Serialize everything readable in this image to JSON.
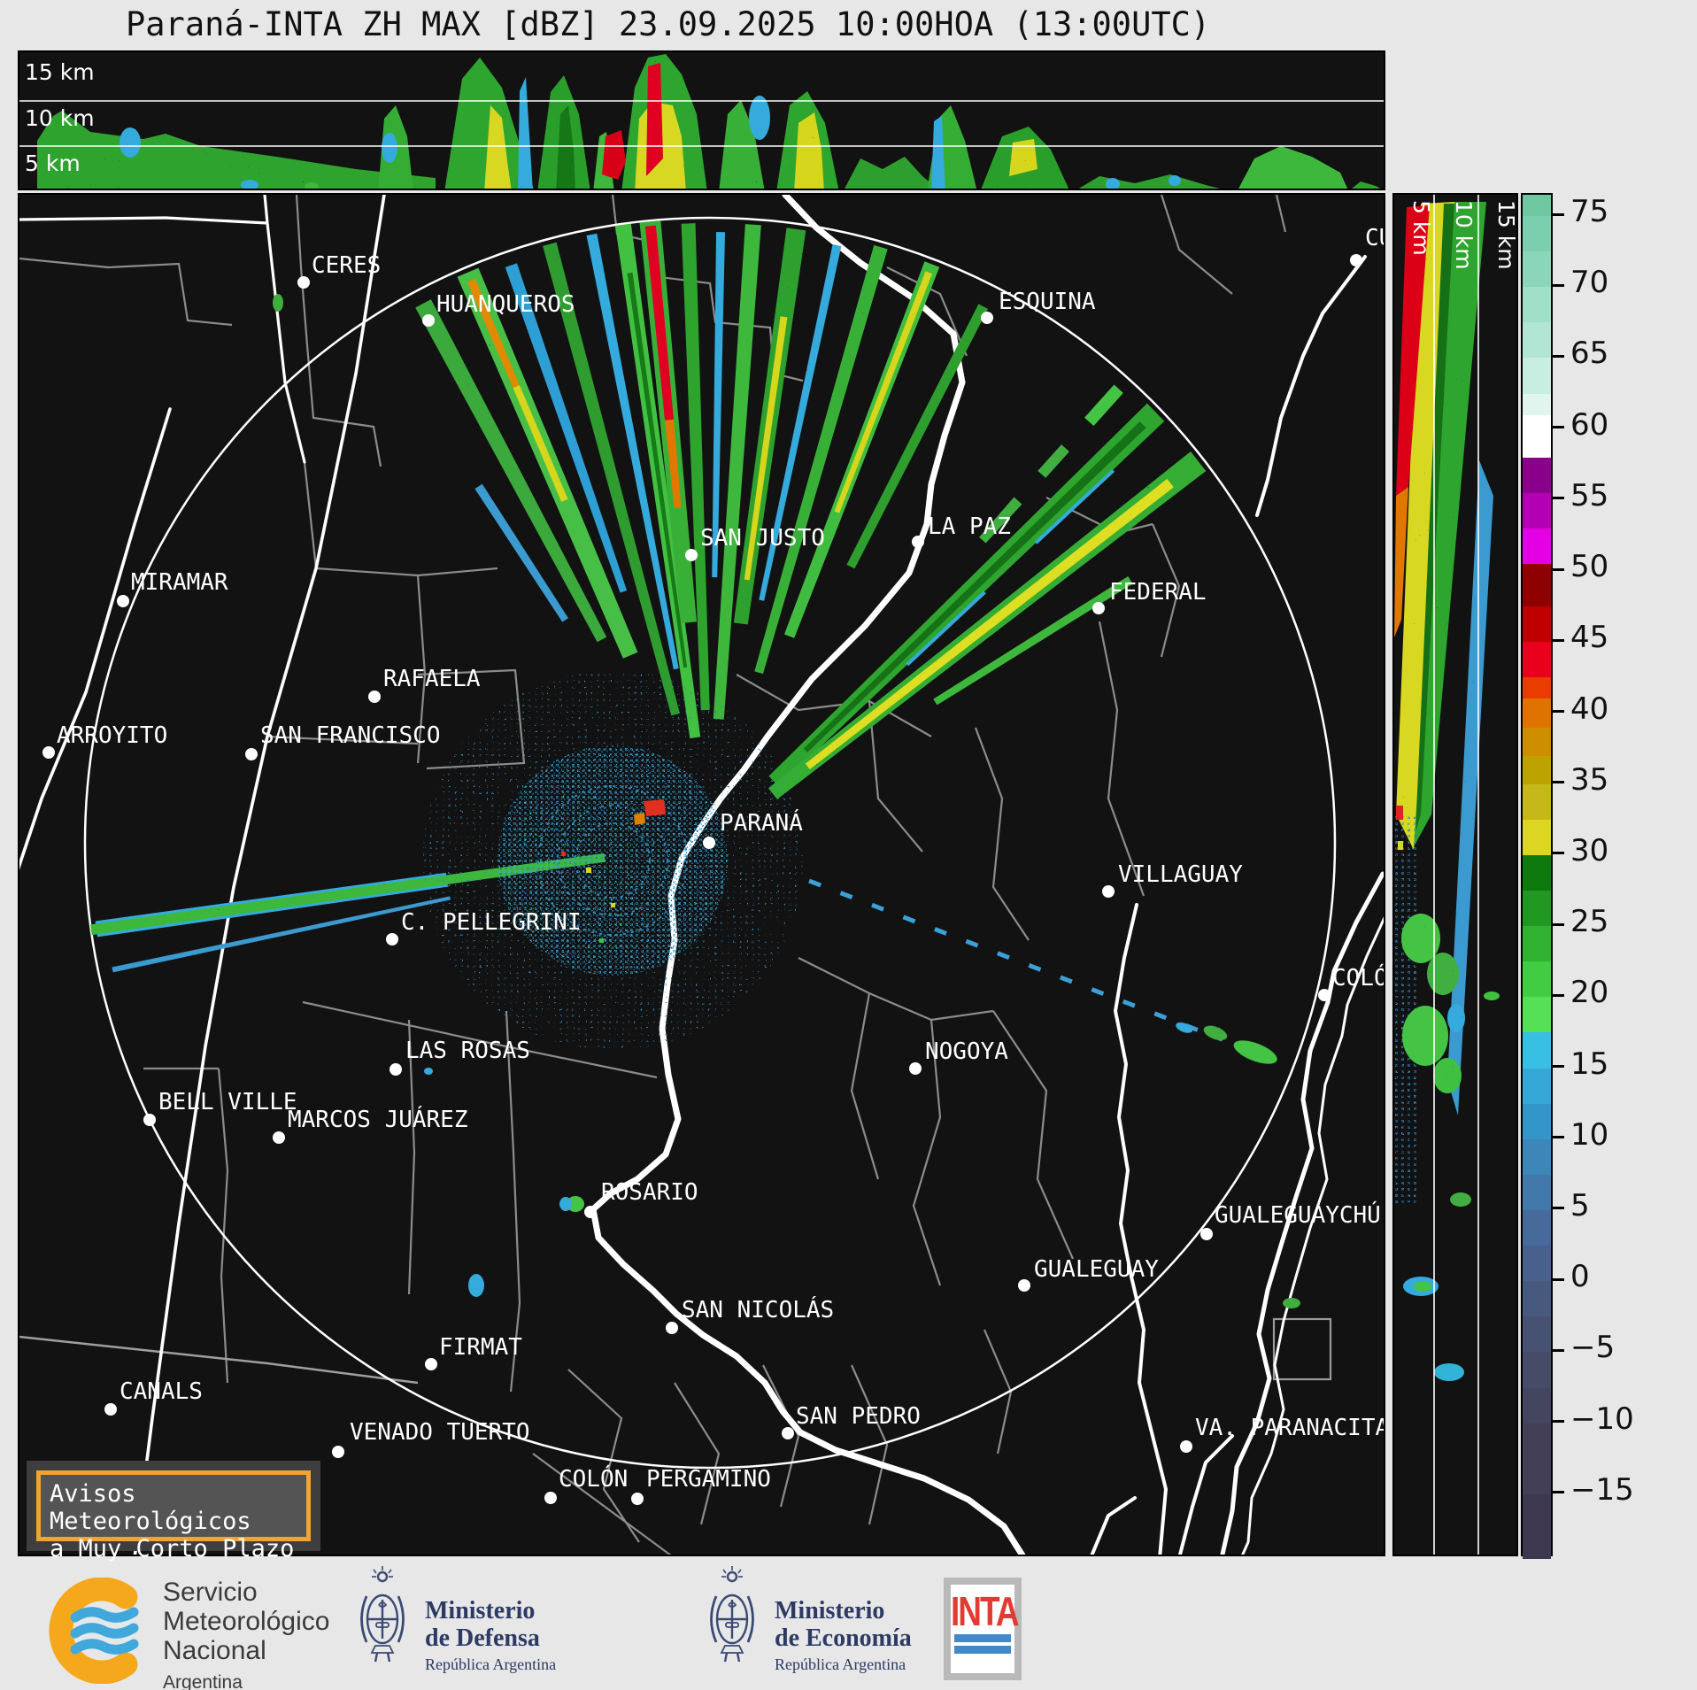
{
  "title": "Paraná-INTA ZH MAX [dBZ] 23.09.2025 10:00HOA (13:00UTC)",
  "top_profile": {
    "height_labels": [
      "15 km",
      "10 km",
      "5 km"
    ]
  },
  "side_profile": {
    "height_labels": [
      "5 km",
      "10 km",
      "15 km"
    ]
  },
  "colorbar": {
    "ticks": [
      75,
      70,
      65,
      60,
      55,
      50,
      45,
      40,
      35,
      30,
      25,
      20,
      15,
      10,
      5,
      0,
      -5,
      -10,
      -15
    ],
    "units": "dBZ",
    "top_value": 76.5,
    "bottom_value": -19.5,
    "segments": [
      {
        "from": 76.5,
        "to": 75,
        "color": "#6ec7a0"
      },
      {
        "from": 75,
        "to": 72.5,
        "color": "#7ccfae"
      },
      {
        "from": 72.5,
        "to": 70,
        "color": "#8bd6ba"
      },
      {
        "from": 70,
        "to": 67.5,
        "color": "#a0dfc8"
      },
      {
        "from": 67.5,
        "to": 65,
        "color": "#b1e6d4"
      },
      {
        "from": 65,
        "to": 62.5,
        "color": "#c8eee2"
      },
      {
        "from": 62.5,
        "to": 61,
        "color": "#dff5ed"
      },
      {
        "from": 61,
        "to": 58,
        "color": "#ffffff"
      },
      {
        "from": 58,
        "to": 55.5,
        "color": "#8b008b"
      },
      {
        "from": 55.5,
        "to": 53,
        "color": "#b400b4"
      },
      {
        "from": 53,
        "to": 50.5,
        "color": "#e400e4"
      },
      {
        "from": 50.5,
        "to": 47.5,
        "color": "#8f0000"
      },
      {
        "from": 47.5,
        "to": 45,
        "color": "#bf0000"
      },
      {
        "from": 45,
        "to": 42.5,
        "color": "#e8001c"
      },
      {
        "from": 42.5,
        "to": 41,
        "color": "#e83c00"
      },
      {
        "from": 41,
        "to": 39,
        "color": "#e07200"
      },
      {
        "from": 39,
        "to": 37,
        "color": "#cf8d00"
      },
      {
        "from": 37,
        "to": 35,
        "color": "#bda300"
      },
      {
        "from": 35,
        "to": 32.5,
        "color": "#c6b71a"
      },
      {
        "from": 32.5,
        "to": 30,
        "color": "#dcd522"
      },
      {
        "from": 30,
        "to": 27.5,
        "color": "#0e7a0e"
      },
      {
        "from": 27.5,
        "to": 25,
        "color": "#219821"
      },
      {
        "from": 25,
        "to": 22.5,
        "color": "#31b231"
      },
      {
        "from": 22.5,
        "to": 20,
        "color": "#42cc42"
      },
      {
        "from": 20,
        "to": 17.5,
        "color": "#55e055"
      },
      {
        "from": 17.5,
        "to": 15,
        "color": "#38bfe4"
      },
      {
        "from": 15,
        "to": 12.5,
        "color": "#35a8d8"
      },
      {
        "from": 12.5,
        "to": 10,
        "color": "#3395c9"
      },
      {
        "from": 10,
        "to": 7.5,
        "color": "#3c86b9"
      },
      {
        "from": 7.5,
        "to": 5,
        "color": "#4379aa"
      },
      {
        "from": 5,
        "to": 2.5,
        "color": "#466b9a"
      },
      {
        "from": 2.5,
        "to": 0,
        "color": "#47608c"
      },
      {
        "from": 0,
        "to": -2.5,
        "color": "#47597f"
      },
      {
        "from": -2.5,
        "to": -5,
        "color": "#475273"
      },
      {
        "from": -5,
        "to": -7.5,
        "color": "#464b68"
      },
      {
        "from": -7.5,
        "to": -10,
        "color": "#44455e"
      },
      {
        "from": -10,
        "to": -15,
        "color": "#423f56"
      },
      {
        "from": -15,
        "to": -19.5,
        "color": "#3d3850"
      }
    ]
  },
  "map": {
    "radar_site": "Paraná",
    "cities": [
      {
        "name": "CERES",
        "dot": [
          321,
          99
        ],
        "label": [
          330,
          65
        ]
      },
      {
        "name": "HUANQUEROS",
        "dot": [
          462,
          142
        ],
        "label": [
          471,
          109
        ]
      },
      {
        "name": "ESQUINA",
        "dot": [
          1093,
          139
        ],
        "label": [
          1106,
          106
        ]
      },
      {
        "name": "CU",
        "dot": [
          1510,
          74
        ],
        "label": [
          1520,
          34
        ]
      },
      {
        "name": "MIRAMAR",
        "dot": [
          117,
          459
        ],
        "label": [
          126,
          423
        ]
      },
      {
        "name": "SAN JUSTO",
        "dot": [
          759,
          407
        ],
        "label": [
          769,
          373
        ]
      },
      {
        "name": "LA PAZ",
        "dot": [
          1015,
          392
        ],
        "label": [
          1026,
          360
        ]
      },
      {
        "name": "FEDERAL",
        "dot": [
          1219,
          467
        ],
        "label": [
          1231,
          434
        ]
      },
      {
        "name": "RAFAELA",
        "dot": [
          401,
          567
        ],
        "label": [
          411,
          532
        ]
      },
      {
        "name": "ARROYITO",
        "dot": [
          33,
          630
        ],
        "label": [
          42,
          596
        ]
      },
      {
        "name": "SAN FRANCISCO",
        "dot": [
          262,
          632
        ],
        "label": [
          272,
          596
        ]
      },
      {
        "name": "PARANÁ",
        "dot": [
          779,
          732
        ],
        "label": [
          791,
          695
        ]
      },
      {
        "name": "VILLAGUAY",
        "dot": [
          1230,
          787
        ],
        "label": [
          1241,
          753
        ]
      },
      {
        "name": "C. PELLEGRINI",
        "dot": [
          421,
          841
        ],
        "label": [
          431,
          807
        ]
      },
      {
        "name": "COLÓN",
        "dot": [
          1474,
          904
        ],
        "label": [
          1483,
          870
        ]
      },
      {
        "name": "NOGOYA",
        "dot": [
          1012,
          987
        ],
        "label": [
          1023,
          953
        ]
      },
      {
        "name": "LAS ROSAS",
        "dot": [
          425,
          988
        ],
        "label": [
          436,
          952
        ]
      },
      {
        "name": "BELL VILLE",
        "dot": [
          147,
          1045
        ],
        "label": [
          157,
          1010
        ]
      },
      {
        "name": "MARCOS JUÁREZ",
        "dot": [
          293,
          1065
        ],
        "label": [
          303,
          1030
        ]
      },
      {
        "name": "ROSARIO",
        "dot": [
          645,
          1149
        ],
        "label": [
          657,
          1112
        ]
      },
      {
        "name": "GUALEGUAYCHÚ",
        "dot": [
          1341,
          1174
        ],
        "label": [
          1350,
          1138
        ]
      },
      {
        "name": "GUALEGUAY",
        "dot": [
          1135,
          1232
        ],
        "label": [
          1146,
          1199
        ]
      },
      {
        "name": "SAN NICOLÁS",
        "dot": [
          737,
          1280
        ],
        "label": [
          748,
          1245
        ]
      },
      {
        "name": "FIRMAT",
        "dot": [
          465,
          1321
        ],
        "label": [
          474,
          1287
        ]
      },
      {
        "name": "CANALS",
        "dot": [
          103,
          1372
        ],
        "label": [
          113,
          1337
        ]
      },
      {
        "name": "VENADO TUERTO",
        "dot": [
          360,
          1420
        ],
        "label": [
          373,
          1383
        ]
      },
      {
        "name": "SAN PEDRO",
        "dot": [
          868,
          1399
        ],
        "label": [
          877,
          1365
        ]
      },
      {
        "name": "VA. PARANACITA",
        "dot": [
          1318,
          1414
        ],
        "label": [
          1328,
          1378
        ]
      },
      {
        "name": "COLÓN",
        "dot": [
          600,
          1472
        ],
        "label": [
          609,
          1436
        ]
      },
      {
        "name": "PERGAMINO",
        "dot": [
          698,
          1473
        ],
        "label": [
          708,
          1436
        ]
      }
    ]
  },
  "notice": {
    "line1": "Avisos Meteorológicos",
    "line2": "a Muy Corto Plazo"
  },
  "footer": {
    "smn": {
      "line1": "Servicio",
      "line2": "Meteorológico",
      "line3": "Nacional",
      "line4": "Argentina"
    },
    "defensa": {
      "line1": "Ministerio",
      "line2": "de Defensa",
      "line3": "República Argentina"
    },
    "economia": {
      "line1": "Ministerio",
      "line2": "de Economía",
      "line3": "República Argentina"
    },
    "inta": {
      "word": "INTA"
    }
  }
}
